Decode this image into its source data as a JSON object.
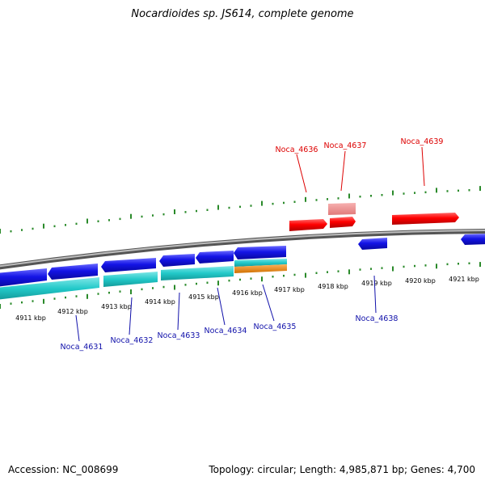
{
  "title": "Nocardioides sp. JS614, complete genome",
  "footer": {
    "accession": "Accession: NC_008699",
    "summary": "Topology: circular; Length: 4,985,871 bp; Genes: 4,700"
  },
  "colors": {
    "forward": "#ff0000",
    "forward_faded": "#f08888",
    "reverse": "#1414e6",
    "cyan_track": "#22c9c9",
    "orange_track": "#f08a00",
    "backbone": "#808080",
    "ticks": "#2a8a2a",
    "label_forward": "#dd0000",
    "label_reverse": "#1010aa"
  },
  "axis": {
    "unit": "kbp",
    "ticks": [
      "4911 kbp",
      "4912 kbp",
      "4913 kbp",
      "4914 kbp",
      "4915 kbp",
      "4916 kbp",
      "4917 kbp",
      "4918 kbp",
      "4919 kbp",
      "4920 kbp",
      "4921 kbp"
    ]
  },
  "genes_upper": [
    "Noca_4636",
    "Noca_4637",
    "Noca_4639"
  ],
  "genes_lower": [
    "Noca_4631",
    "Noca_4632",
    "Noca_4633",
    "Noca_4634",
    "Noca_4635",
    "Noca_4638"
  ]
}
